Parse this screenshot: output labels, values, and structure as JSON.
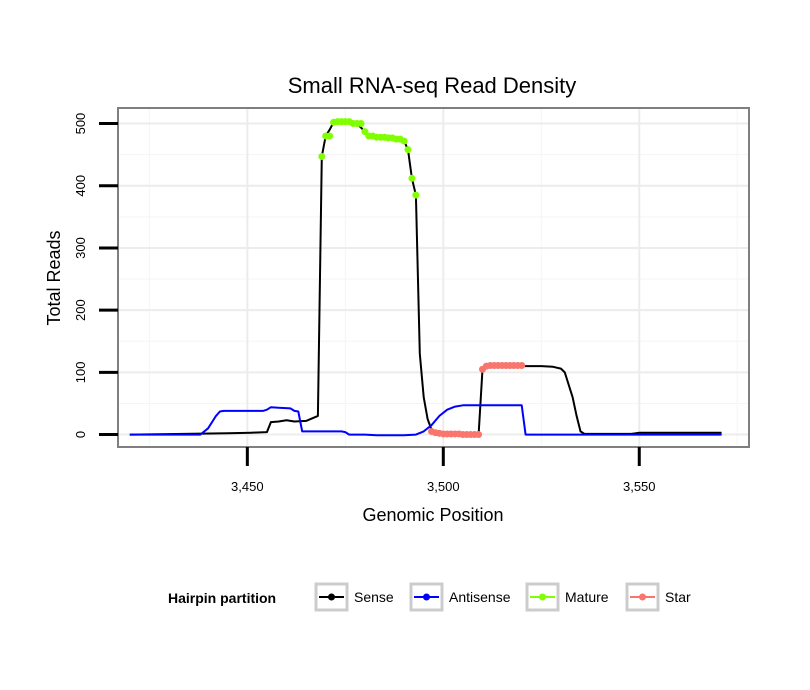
{
  "chart_data": {
    "type": "line",
    "title": "Small RNA-seq Read Density",
    "xlabel": "Genomic Position",
    "ylabel": "Total Reads",
    "xlim": [
      3417,
      3578
    ],
    "ylim": [
      -20,
      525
    ],
    "x_ticks": [
      3450,
      3500,
      3550
    ],
    "x_tick_labels": [
      "3,450",
      "3,500",
      "3,550"
    ],
    "y_ticks": [
      0,
      100,
      200,
      300,
      400,
      500
    ],
    "y_tick_labels": [
      "0",
      "100",
      "200",
      "300",
      "400",
      "500"
    ],
    "legend": {
      "title": "Hairpin partition",
      "position": "bottom",
      "entries": [
        "Sense",
        "Antisense",
        "Mature",
        "Star"
      ]
    },
    "series": [
      {
        "name": "Sense",
        "color": "#000000",
        "points": [
          [
            3420,
            0
          ],
          [
            3434,
            1
          ],
          [
            3445,
            2
          ],
          [
            3451,
            3
          ],
          [
            3455,
            4
          ],
          [
            3456,
            20
          ],
          [
            3458,
            21
          ],
          [
            3460,
            23
          ],
          [
            3462,
            21
          ],
          [
            3465,
            22
          ],
          [
            3468,
            30
          ],
          [
            3469,
            447
          ],
          [
            3470,
            480
          ],
          [
            3471,
            490
          ],
          [
            3472,
            502
          ],
          [
            3474,
            503
          ],
          [
            3476,
            503
          ],
          [
            3478,
            500
          ],
          [
            3480,
            487
          ],
          [
            3481,
            480
          ],
          [
            3484,
            478
          ],
          [
            3487,
            477
          ],
          [
            3489,
            475
          ],
          [
            3490,
            472
          ],
          [
            3491,
            458
          ],
          [
            3492,
            412
          ],
          [
            3493,
            385
          ],
          [
            3494,
            130
          ],
          [
            3495,
            60
          ],
          [
            3496,
            25
          ],
          [
            3497,
            8
          ],
          [
            3498,
            3
          ],
          [
            3500,
            1
          ],
          [
            3502,
            0
          ],
          [
            3505,
            0
          ],
          [
            3508,
            0
          ],
          [
            3509,
            0
          ],
          [
            3510,
            105
          ],
          [
            3511,
            110
          ],
          [
            3515,
            110
          ],
          [
            3520,
            110
          ],
          [
            3525,
            110
          ],
          [
            3528,
            109
          ],
          [
            3530,
            106
          ],
          [
            3531,
            100
          ],
          [
            3532,
            80
          ],
          [
            3533,
            60
          ],
          [
            3534,
            30
          ],
          [
            3535,
            5
          ],
          [
            3536,
            1
          ],
          [
            3540,
            1
          ],
          [
            3548,
            1
          ],
          [
            3550,
            3
          ],
          [
            3560,
            3
          ],
          [
            3571,
            3
          ]
        ]
      },
      {
        "name": "Antisense",
        "color": "#0000ff",
        "points": [
          [
            3420,
            0
          ],
          [
            3438,
            0
          ],
          [
            3440,
            10
          ],
          [
            3442,
            30
          ],
          [
            3443,
            37
          ],
          [
            3444,
            38
          ],
          [
            3450,
            38
          ],
          [
            3454,
            38
          ],
          [
            3455,
            40
          ],
          [
            3456,
            44
          ],
          [
            3458,
            43
          ],
          [
            3461,
            42
          ],
          [
            3462,
            38
          ],
          [
            3463,
            37
          ],
          [
            3464,
            5
          ],
          [
            3470,
            5
          ],
          [
            3474,
            5
          ],
          [
            3475,
            4
          ],
          [
            3476,
            0
          ],
          [
            3480,
            0
          ],
          [
            3483,
            -1
          ],
          [
            3490,
            -1
          ],
          [
            3493,
            0
          ],
          [
            3495,
            5
          ],
          [
            3497,
            15
          ],
          [
            3499,
            30
          ],
          [
            3501,
            40
          ],
          [
            3503,
            45
          ],
          [
            3505,
            47
          ],
          [
            3518,
            47
          ],
          [
            3520,
            47
          ],
          [
            3521,
            0
          ],
          [
            3530,
            0
          ],
          [
            3540,
            0
          ],
          [
            3550,
            0
          ],
          [
            3571,
            0
          ]
        ]
      }
    ],
    "markers": [
      {
        "name": "Mature",
        "color": "#7fff00",
        "points": [
          [
            3469,
            447
          ],
          [
            3470,
            480
          ],
          [
            3471,
            480
          ],
          [
            3472,
            502
          ],
          [
            3473,
            503
          ],
          [
            3474,
            503
          ],
          [
            3475,
            503
          ],
          [
            3476,
            503
          ],
          [
            3477,
            500
          ],
          [
            3478,
            500
          ],
          [
            3479,
            500
          ],
          [
            3480,
            487
          ],
          [
            3481,
            480
          ],
          [
            3482,
            480
          ],
          [
            3483,
            478
          ],
          [
            3484,
            478
          ],
          [
            3485,
            478
          ],
          [
            3486,
            477
          ],
          [
            3487,
            477
          ],
          [
            3488,
            475
          ],
          [
            3489,
            475
          ],
          [
            3490,
            472
          ],
          [
            3491,
            458
          ],
          [
            3492,
            412
          ],
          [
            3493,
            385
          ]
        ]
      },
      {
        "name": "Star",
        "color": "#f8766d",
        "points": [
          [
            3497,
            5
          ],
          [
            3498,
            3
          ],
          [
            3499,
            2
          ],
          [
            3500,
            1
          ],
          [
            3501,
            1
          ],
          [
            3502,
            1
          ],
          [
            3503,
            1
          ],
          [
            3504,
            1
          ],
          [
            3505,
            0
          ],
          [
            3506,
            0
          ],
          [
            3507,
            0
          ],
          [
            3508,
            0
          ],
          [
            3509,
            0
          ],
          [
            3510,
            105
          ],
          [
            3511,
            110
          ],
          [
            3512,
            111
          ],
          [
            3513,
            111
          ],
          [
            3514,
            111
          ],
          [
            3515,
            111
          ],
          [
            3516,
            111
          ],
          [
            3517,
            111
          ],
          [
            3518,
            111
          ],
          [
            3519,
            111
          ],
          [
            3520,
            111
          ]
        ]
      }
    ],
    "grid": true
  }
}
